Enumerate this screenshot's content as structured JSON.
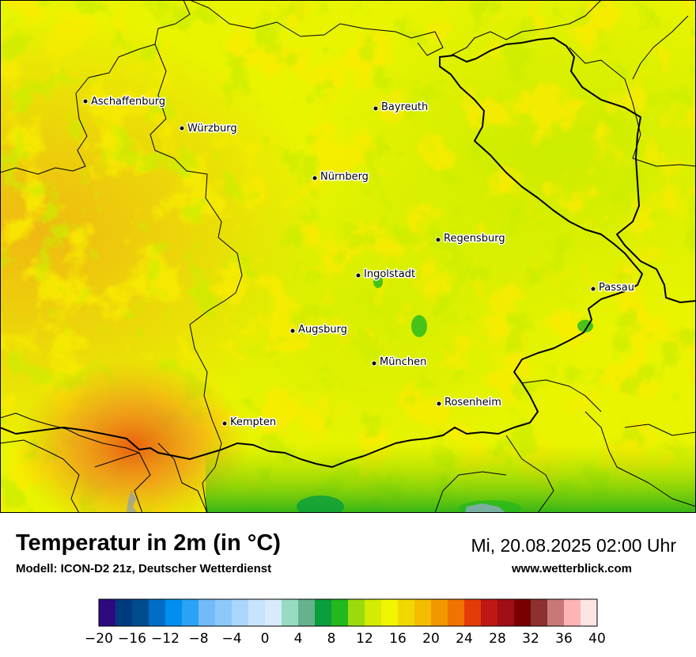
{
  "title": "Temperatur in 2m (in °C)",
  "subtitle": "Modell: ICON-D2 21z, Deutscher Wetterdienst",
  "datetime": "Mi, 20.08.2025 02:00 Uhr",
  "website": "www.wetterblick.com",
  "cities": [
    {
      "name": "Aschaffenburg",
      "id": "aschaffenburg"
    },
    {
      "name": "Würzburg",
      "id": "wuerzburg"
    },
    {
      "name": "Bayreuth",
      "id": "bayreuth"
    },
    {
      "name": "Nürnberg",
      "id": "nuernberg"
    },
    {
      "name": "Regensburg",
      "id": "regensburg"
    },
    {
      "name": "Ingolstadt",
      "id": "ingolstadt"
    },
    {
      "name": "Passau",
      "id": "passau"
    },
    {
      "name": "Augsburg",
      "id": "augsburg"
    },
    {
      "name": "München",
      "id": "muenchen"
    },
    {
      "name": "Rosenheim",
      "id": "rosenheim"
    },
    {
      "name": "Kempten",
      "id": "kempten"
    }
  ],
  "legend": {
    "min": -20,
    "max": 40,
    "step": 2,
    "tick_labels": [
      "−20",
      "−16",
      "−12",
      "−8",
      "−4",
      "0",
      "4",
      "8",
      "12",
      "16",
      "20",
      "24",
      "28",
      "32",
      "36",
      "40"
    ],
    "colors": [
      "#2d0b7f",
      "#003a7f",
      "#004c8f",
      "#006ec4",
      "#008ff0",
      "#2aa2f5",
      "#72bbf8",
      "#8ac9f9",
      "#a9d6fb",
      "#c8e4fc",
      "#d8ebfd",
      "#96dbc2",
      "#65b28d",
      "#0a9e3d",
      "#22b81e",
      "#9bdb0d",
      "#d4ec05",
      "#f2f500",
      "#f0d800",
      "#f4bd00",
      "#f19800",
      "#ef7400",
      "#e63a0a",
      "#bf1616",
      "#a00f15",
      "#790000",
      "#8d3030",
      "#c97878",
      "#fcb4b4",
      "#ffe4e4"
    ]
  },
  "map_colors": {
    "base_yellow": "#e8f400",
    "light_green": "#c6ea00",
    "green": "#8fd400",
    "dark_green": "#1fae1a",
    "amber": "#f2d600",
    "orange": "#f2a418",
    "deep_orange": "#ea6a1a"
  }
}
